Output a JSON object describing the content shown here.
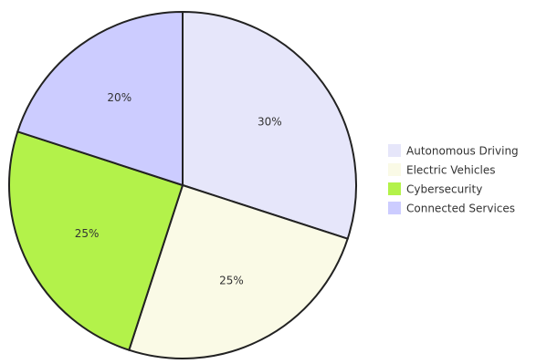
{
  "chart_data": {
    "type": "pie",
    "title": "",
    "legend_position": "right",
    "start_angle_deg": 0,
    "direction": "clockwise",
    "slices": [
      {
        "label": "Autonomous Driving",
        "value": 30,
        "display": "30%",
        "color": "#e6e6fa"
      },
      {
        "label": "Electric Vehicles",
        "value": 25,
        "display": "25%",
        "color": "#fafae6"
      },
      {
        "label": "Cybersecurity",
        "value": 25,
        "display": "25%",
        "color": "#b3f24a"
      },
      {
        "label": "Connected Services",
        "value": 20,
        "display": "20%",
        "color": "#ccccff"
      }
    ],
    "outline_color": "#222222"
  }
}
